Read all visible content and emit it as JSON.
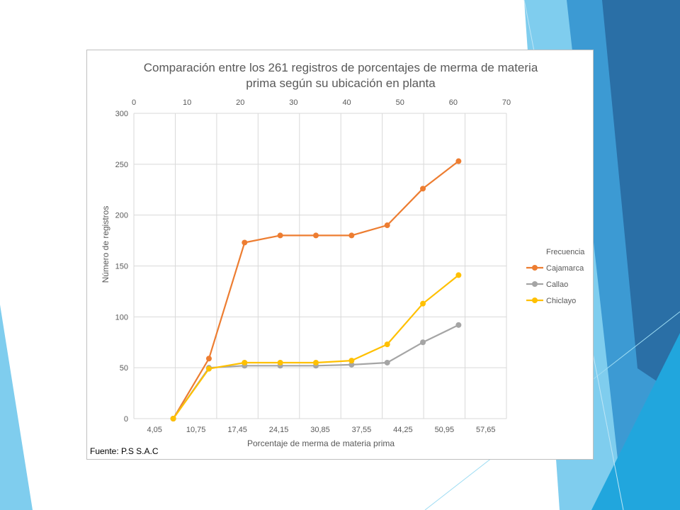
{
  "slide": {
    "colors": {
      "light_blue": "#7fcdee",
      "mid_blue": "#3c9ad3",
      "dark_blue": "#2a6fa6",
      "cyan": "#21a6dd"
    }
  },
  "chart_data": {
    "type": "line",
    "title_line1": "Comparación entre los 261 registros de porcentajes de merma de materia",
    "title_line2": "prima según su ubicación en planta",
    "xlabel": "Porcentaje de merma de materia prima",
    "ylabel": "Número de registros",
    "source": "Fuente: P.S S.A.C",
    "x_top_ticks": [
      0,
      10,
      20,
      30,
      40,
      50,
      60,
      70
    ],
    "x_top_range": [
      0,
      70
    ],
    "x_bottom_categories": [
      "4,05",
      "10,75",
      "17,45",
      "24,15",
      "30,85",
      "37,55",
      "44,25",
      "50,95",
      "57,65"
    ],
    "ylim": [
      0,
      300
    ],
    "y_ticks": [
      0,
      50,
      100,
      150,
      200,
      250,
      300
    ],
    "grid": true,
    "legend_title": "Frecuencia",
    "legend_position": "right",
    "x": [
      7.4,
      14.1,
      20.8,
      27.5,
      34.2,
      40.9,
      47.6,
      54.3,
      61.0
    ],
    "series": [
      {
        "name": "Cajamarca",
        "color": "#ed7d31",
        "values": [
          0,
          59,
          173,
          180,
          180,
          180,
          190,
          226,
          253
        ]
      },
      {
        "name": "Callao",
        "color": "#a5a5a5",
        "values": [
          0,
          50,
          52,
          52,
          52,
          53,
          55,
          75,
          92
        ]
      },
      {
        "name": "Chiclayo",
        "color": "#ffc000",
        "values": [
          0,
          49,
          55,
          55,
          55,
          57,
          73,
          113,
          141
        ]
      }
    ]
  }
}
